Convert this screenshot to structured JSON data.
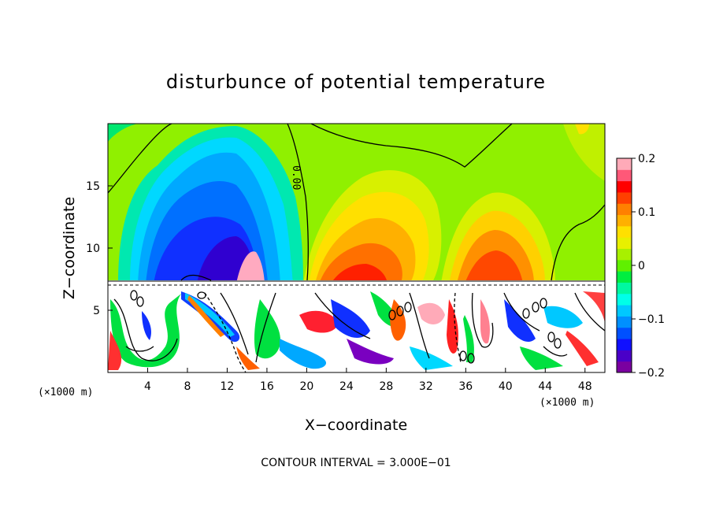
{
  "chart_data": {
    "type": "heatmap",
    "title": "disturbunce of potential temperature",
    "xlabel": "X−coordinate",
    "ylabel": "Z−coordinate",
    "x_unit": "(×1000 m)",
    "z_unit": "(×1000 m)",
    "xlim": [
      0,
      50
    ],
    "ylim": [
      0,
      20
    ],
    "x_ticks": [
      "4",
      "8",
      "12",
      "16",
      "20",
      "24",
      "28",
      "32",
      "36",
      "40",
      "44",
      "48"
    ],
    "y_ticks": [
      "5",
      "10",
      "15"
    ],
    "colorbar": {
      "range": [
        -0.2,
        0.2
      ],
      "tick_labels": [
        "0.2",
        "0.1",
        "0",
        "−0.1",
        "−0.2"
      ],
      "tick_values": [
        0.2,
        0.1,
        0,
        -0.1,
        -0.2
      ],
      "colors": [
        "#7a00a0",
        "#4a00c8",
        "#1010ff",
        "#0050ff",
        "#0090ff",
        "#00c8ff",
        "#00ffe8",
        "#00f8a0",
        "#00ee40",
        "#60f000",
        "#a8f000",
        "#e8f000",
        "#ffe000",
        "#ffb000",
        "#ff8000",
        "#ff4000",
        "#ff0000",
        "#ff5878",
        "#ffaab8"
      ]
    },
    "contour_label": "0.00",
    "annotation": "CONTOUR INTERVAL = 3.000E−01",
    "features": {
      "upper_layer_base_z": 7.2,
      "negative_anomaly_x_range": [
        4,
        20
      ],
      "positive_anomalies_x": [
        [
          20,
          32
        ],
        [
          34,
          44
        ]
      ]
    }
  }
}
